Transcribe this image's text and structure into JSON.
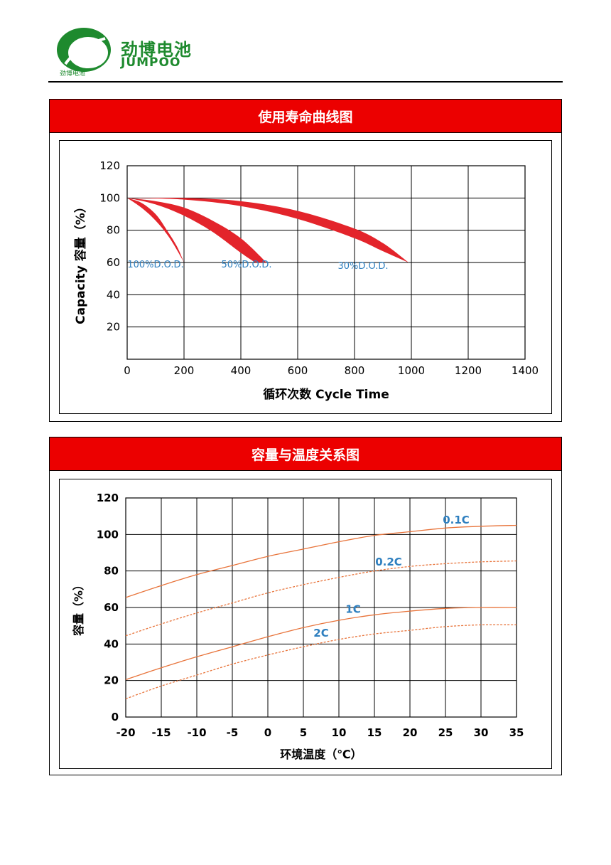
{
  "brand": {
    "name_cn": "劲博电池",
    "name_en": "JUMPOO",
    "logo_small_text": "劲博电池",
    "colors": {
      "green": "#1e8a2e",
      "header_red": "#ec0000"
    }
  },
  "panels": [
    {
      "title": "使用寿命曲线图"
    },
    {
      "title": "容量与温度关系图"
    }
  ],
  "chart_data": [
    {
      "type": "area",
      "ylabel": "Capacity 容量（%）",
      "xlabel": "循环次数 Cycle Time",
      "xlim": [
        0,
        1400
      ],
      "ylim": [
        0,
        120
      ],
      "x_ticks": [
        0,
        200,
        400,
        600,
        800,
        1000,
        1200,
        1400
      ],
      "y_ticks": [
        20,
        40,
        60,
        80,
        100,
        120
      ],
      "grid": true,
      "band_color": "#e3242b",
      "series": [
        {
          "name": "100%D.O.D.",
          "upper": [
            [
              0,
              100
            ],
            [
              50,
              94
            ],
            [
              100,
              86
            ],
            [
              150,
              75
            ],
            [
              200,
              60
            ]
          ],
          "lower": [
            [
              0,
              100
            ],
            [
              50,
              97
            ],
            [
              100,
              90
            ],
            [
              140,
              80
            ],
            [
              175,
              70
            ],
            [
              200,
              60
            ]
          ],
          "label_at": [
            100,
            57
          ]
        },
        {
          "name": "50%D.O.D.",
          "upper": [
            [
              0,
              100
            ],
            [
              100,
              96
            ],
            [
              200,
              89
            ],
            [
              300,
              79
            ],
            [
              400,
              66
            ],
            [
              450,
              60
            ]
          ],
          "lower": [
            [
              0,
              100
            ],
            [
              100,
              98
            ],
            [
              200,
              94
            ],
            [
              300,
              86
            ],
            [
              400,
              75
            ],
            [
              490,
              60
            ]
          ],
          "label_at": [
            420,
            57
          ]
        },
        {
          "name": "30%D.O.D.",
          "upper": [
            [
              0,
              100
            ],
            [
              200,
              99
            ],
            [
              400,
              95
            ],
            [
              600,
              87
            ],
            [
              800,
              75
            ],
            [
              900,
              67
            ],
            [
              990,
              60
            ]
          ],
          "lower": [
            [
              0,
              100
            ],
            [
              200,
              100
            ],
            [
              400,
              98
            ],
            [
              600,
              92
            ],
            [
              800,
              81
            ],
            [
              900,
              72
            ],
            [
              990,
              60
            ]
          ],
          "label_at": [
            830,
            56
          ]
        }
      ]
    },
    {
      "type": "line",
      "ylabel": "容量（%）",
      "xlabel": "环境温度（℃）",
      "xlim": [
        -20,
        35
      ],
      "ylim": [
        0,
        120
      ],
      "x_ticks": [
        -20,
        -15,
        -10,
        -5,
        0,
        5,
        10,
        15,
        20,
        25,
        30,
        35
      ],
      "y_ticks": [
        0,
        20,
        40,
        60,
        80,
        100,
        120
      ],
      "grid": true,
      "line_color": "#e8743b",
      "label_color": "#2e7fbf",
      "series": [
        {
          "name": "0.1C",
          "dash": false,
          "x": [
            -20,
            -15,
            -10,
            -5,
            0,
            5,
            10,
            15,
            20,
            25,
            30,
            35
          ],
          "y": [
            65.5,
            72,
            78,
            83,
            88,
            92,
            96,
            99.5,
            101.5,
            103.5,
            104.5,
            105
          ],
          "label_at": [
            26.5,
            106
          ]
        },
        {
          "name": "0.2C",
          "dash": true,
          "x": [
            -20,
            -15,
            -10,
            -5,
            0,
            5,
            10,
            15,
            20,
            25,
            30,
            35
          ],
          "y": [
            44.5,
            51,
            57,
            62.5,
            68,
            72.5,
            76.5,
            80,
            82.5,
            84,
            85,
            85.5
          ],
          "label_at": [
            17,
            83
          ]
        },
        {
          "name": "1C",
          "dash": false,
          "x": [
            -20,
            -15,
            -10,
            -5,
            0,
            5,
            10,
            15,
            20,
            25,
            30,
            35
          ],
          "y": [
            20.5,
            27,
            33,
            38.5,
            44,
            49,
            53,
            56,
            58,
            59.5,
            60,
            60
          ],
          "label_at": [
            12,
            57
          ]
        },
        {
          "name": "2C",
          "dash": true,
          "x": [
            -20,
            -15,
            -10,
            -5,
            0,
            5,
            10,
            15,
            20,
            25,
            30,
            35
          ],
          "y": [
            10,
            17,
            23,
            29,
            34,
            38.5,
            42.5,
            45.5,
            47.5,
            49.5,
            50.5,
            50.5
          ],
          "label_at": [
            7.5,
            44
          ]
        }
      ]
    }
  ]
}
